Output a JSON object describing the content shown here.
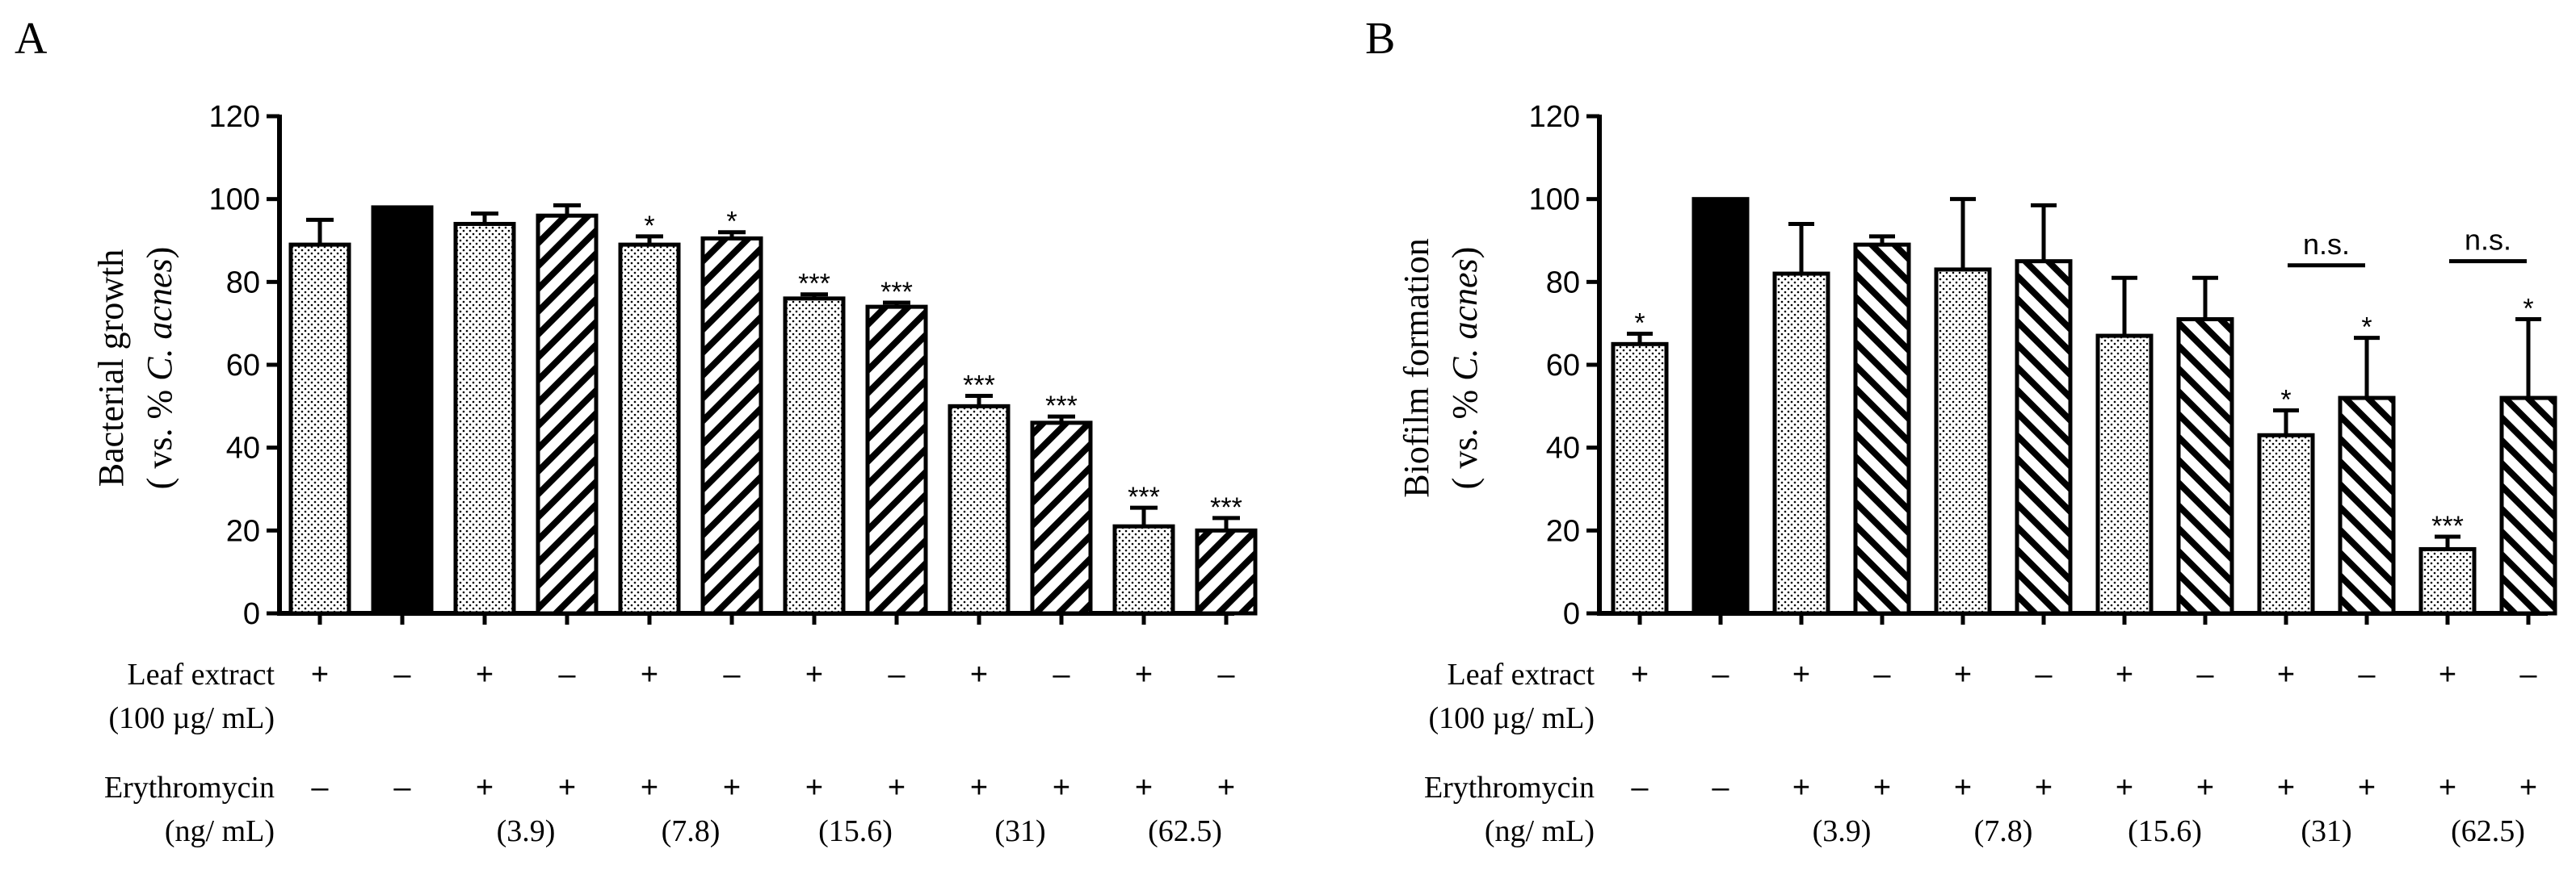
{
  "chart_data": [
    {
      "type": "bar",
      "panel": "A",
      "ylabel_line1": "Bacterial growth",
      "ylabel_line2_prefix": "( vs. % ",
      "ylabel_line2_italic": "C. acnes",
      "ylabel_line2_suffix": ")",
      "ylim": [
        0,
        120
      ],
      "yticks": [
        "0",
        "20",
        "40",
        "60",
        "80",
        "100",
        "120"
      ],
      "bars": [
        {
          "value": 89,
          "err": 6,
          "pattern": "dots",
          "sig": ""
        },
        {
          "value": 98,
          "err": 0,
          "pattern": "black",
          "sig": ""
        },
        {
          "value": 94,
          "err": 2.5,
          "pattern": "dots",
          "sig": ""
        },
        {
          "value": 96,
          "err": 2.5,
          "pattern": "backslash",
          "sig": ""
        },
        {
          "value": 89,
          "err": 2,
          "pattern": "dots",
          "sig": "*"
        },
        {
          "value": 90.5,
          "err": 1.5,
          "pattern": "backslash",
          "sig": "*"
        },
        {
          "value": 76,
          "err": 1,
          "pattern": "dots",
          "sig": "***"
        },
        {
          "value": 74,
          "err": 1,
          "pattern": "backslash",
          "sig": "***"
        },
        {
          "value": 50,
          "err": 2.5,
          "pattern": "dots",
          "sig": "***"
        },
        {
          "value": 46,
          "err": 1.5,
          "pattern": "backslash",
          "sig": "***"
        },
        {
          "value": 21,
          "err": 4.5,
          "pattern": "dots",
          "sig": "***"
        },
        {
          "value": 20,
          "err": 3,
          "pattern": "backslash",
          "sig": "***"
        }
      ],
      "ns_brackets": [],
      "leaf_label_line1": "Leaf extract",
      "leaf_label_line2": "(100 µg/ mL)",
      "leaf_signs": [
        "+",
        "–",
        "+",
        "–",
        "+",
        "–",
        "+",
        "–",
        "+",
        "–",
        "+",
        "–"
      ],
      "ery_label_line1": "Erythromycin",
      "ery_label_line2": "(ng/ mL)",
      "ery_signs": [
        "–",
        "–",
        "+",
        "+",
        "+",
        "+",
        "+",
        "+",
        "+",
        "+",
        "+",
        "+"
      ],
      "concentrations": [
        "(3.9)",
        "(7.8)",
        "(15.6)",
        "(31)",
        "(62.5)"
      ]
    },
    {
      "type": "bar",
      "panel": "B",
      "ylabel_line1": "Biofilm formation",
      "ylabel_line2_prefix": "( vs. % ",
      "ylabel_line2_italic": "C. acnes",
      "ylabel_line2_suffix": ")",
      "ylim": [
        0,
        120
      ],
      "yticks": [
        "0",
        "20",
        "40",
        "60",
        "80",
        "100",
        "120"
      ],
      "bars": [
        {
          "value": 65,
          "err": 2.5,
          "pattern": "dots",
          "sig": "*"
        },
        {
          "value": 100,
          "err": 0,
          "pattern": "black",
          "sig": ""
        },
        {
          "value": 82,
          "err": 12,
          "pattern": "dots",
          "sig": ""
        },
        {
          "value": 89,
          "err": 2,
          "pattern": "slash",
          "sig": ""
        },
        {
          "value": 83,
          "err": 17,
          "pattern": "dots",
          "sig": ""
        },
        {
          "value": 85,
          "err": 13.5,
          "pattern": "slash",
          "sig": ""
        },
        {
          "value": 67,
          "err": 14,
          "pattern": "dots",
          "sig": ""
        },
        {
          "value": 71,
          "err": 10,
          "pattern": "slash",
          "sig": ""
        },
        {
          "value": 43,
          "err": 6,
          "pattern": "dots",
          "sig": "*"
        },
        {
          "value": 52,
          "err": 14.5,
          "pattern": "slash",
          "sig": "*"
        },
        {
          "value": 15.5,
          "err": 3,
          "pattern": "dots",
          "sig": "***"
        },
        {
          "value": 52,
          "err": 19,
          "pattern": "slash",
          "sig": "*"
        }
      ],
      "ns_brackets": [
        {
          "from": 8,
          "to": 9,
          "label": "n.s."
        },
        {
          "from": 10,
          "to": 11,
          "label": "n.s."
        }
      ],
      "leaf_label_line1": "Leaf extract",
      "leaf_label_line2": "(100 µg/ mL)",
      "leaf_signs": [
        "+",
        "–",
        "+",
        "–",
        "+",
        "–",
        "+",
        "–",
        "+",
        "–",
        "+",
        "–"
      ],
      "ery_label_line1": "Erythromycin",
      "ery_label_line2": "(ng/ mL)",
      "ery_signs": [
        "–",
        "–",
        "+",
        "+",
        "+",
        "+",
        "+",
        "+",
        "+",
        "+",
        "+",
        "+"
      ],
      "concentrations": [
        "(3.9)",
        "(7.8)",
        "(15.6)",
        "(31)",
        "(62.5)"
      ]
    }
  ]
}
